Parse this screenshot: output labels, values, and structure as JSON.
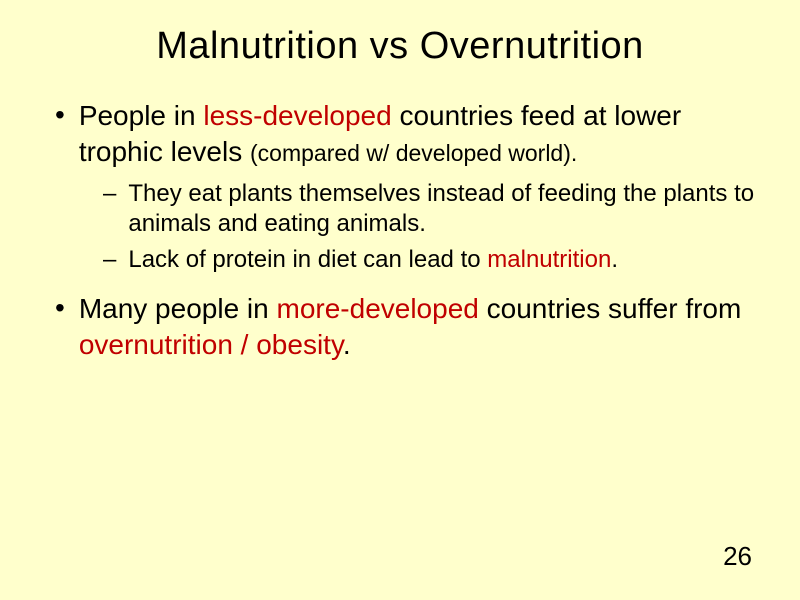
{
  "colors": {
    "background": "#ffffcc",
    "text": "#000000",
    "highlight": "#c00000"
  },
  "typography": {
    "font_family": "Arial",
    "title_fontsize": 38,
    "bullet_l1_fontsize": 28,
    "bullet_l2_fontsize": 24,
    "paren_fontsize": 23,
    "page_number_fontsize": 26
  },
  "title": "Malnutrition vs Overnutrition",
  "bullets": [
    {
      "level": 1,
      "segments": [
        {
          "text": "People in ",
          "highlight": false
        },
        {
          "text": "less-developed",
          "highlight": true
        },
        {
          "text": " countries feed at lower trophic levels ",
          "highlight": false
        },
        {
          "text": "(compared w/ developed world).",
          "highlight": false,
          "paren": true
        }
      ]
    },
    {
      "level": 2,
      "segments": [
        {
          "text": "They eat plants themselves instead of feeding the plants to animals and eating  animals.",
          "highlight": false
        }
      ]
    },
    {
      "level": 2,
      "segments": [
        {
          "text": "Lack of protein in diet can lead to ",
          "highlight": false
        },
        {
          "text": "malnutrition",
          "highlight": true
        },
        {
          "text": ".",
          "highlight": false
        }
      ]
    },
    {
      "level": 1,
      "segments": [
        {
          "text": "Many people in ",
          "highlight": false
        },
        {
          "text": "more-developed",
          "highlight": true
        },
        {
          "text": " countries suffer from ",
          "highlight": false
        },
        {
          "text": "overnutrition / obesity",
          "highlight": true
        },
        {
          "text": ".",
          "highlight": false
        }
      ]
    }
  ],
  "markers": {
    "l1": "•",
    "l2": "–"
  },
  "page_number": "26"
}
